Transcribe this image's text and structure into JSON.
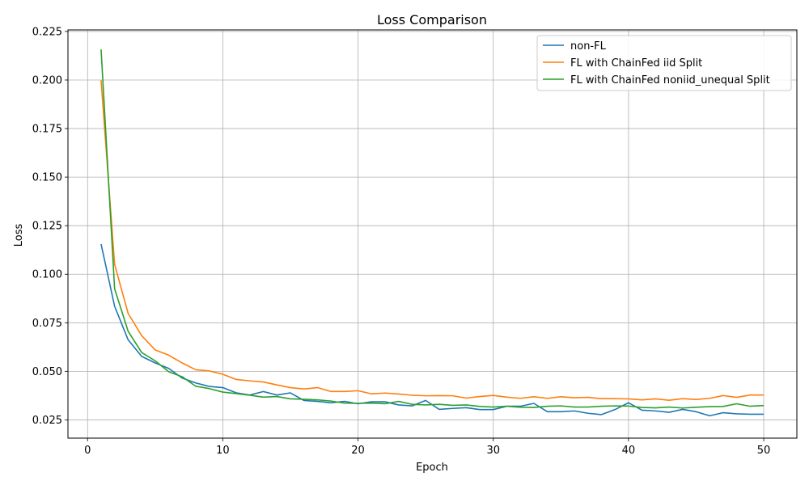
{
  "chart_data": {
    "type": "line",
    "title": "Loss Comparison",
    "xlabel": "Epoch",
    "ylabel": "Loss",
    "xlim": [
      -1.45,
      52.45
    ],
    "ylim": [
      0.0156,
      0.2258
    ],
    "xticks": [
      0,
      10,
      20,
      30,
      40,
      50
    ],
    "yticks": [
      0.025,
      0.05,
      0.075,
      0.1,
      0.125,
      0.15,
      0.175,
      0.2,
      0.225
    ],
    "grid": true,
    "legend_position": "top-right",
    "x": [
      1,
      2,
      3,
      4,
      5,
      6,
      7,
      8,
      9,
      10,
      11,
      12,
      13,
      14,
      15,
      16,
      17,
      18,
      19,
      20,
      21,
      22,
      23,
      24,
      25,
      26,
      27,
      28,
      29,
      30,
      31,
      32,
      33,
      34,
      35,
      36,
      37,
      38,
      39,
      40,
      41,
      42,
      43,
      44,
      45,
      46,
      47,
      48,
      49,
      50
    ],
    "series": [
      {
        "name": "non-FL",
        "color": "#1f77b4",
        "values": [
          0.1155,
          0.0835,
          0.0662,
          0.0577,
          0.0543,
          0.0515,
          0.0465,
          0.044,
          0.0422,
          0.0416,
          0.0389,
          0.0378,
          0.0396,
          0.0378,
          0.0389,
          0.035,
          0.0345,
          0.0338,
          0.0345,
          0.0333,
          0.0343,
          0.0343,
          0.0327,
          0.0322,
          0.035,
          0.0304,
          0.0309,
          0.0313,
          0.0303,
          0.0303,
          0.032,
          0.032,
          0.0335,
          0.0292,
          0.0292,
          0.0296,
          0.0284,
          0.0277,
          0.0303,
          0.0338,
          0.03,
          0.0296,
          0.0289,
          0.0304,
          0.0292,
          0.0271,
          0.0287,
          0.0281,
          0.0279,
          0.0279
        ]
      },
      {
        "name": "FL with ChainFed iid Split",
        "color": "#ff7f0e",
        "values": [
          0.1998,
          0.1051,
          0.0798,
          0.0684,
          0.061,
          0.0583,
          0.0543,
          0.0508,
          0.0502,
          0.0485,
          0.0458,
          0.0451,
          0.0445,
          0.043,
          0.0416,
          0.0409,
          0.0416,
          0.0396,
          0.0396,
          0.04,
          0.0384,
          0.0388,
          0.0383,
          0.0377,
          0.0374,
          0.0375,
          0.0374,
          0.0362,
          0.037,
          0.0376,
          0.0367,
          0.0361,
          0.0369,
          0.0361,
          0.0369,
          0.0364,
          0.0366,
          0.0359,
          0.0359,
          0.0358,
          0.0353,
          0.0358,
          0.0351,
          0.0359,
          0.0355,
          0.0361,
          0.0375,
          0.0366,
          0.0378,
          0.0378
        ]
      },
      {
        "name": "FL with ChainFed noniid_unequal Split",
        "color": "#2ca02c",
        "values": [
          0.2158,
          0.0925,
          0.0706,
          0.0597,
          0.0554,
          0.0498,
          0.0472,
          0.0423,
          0.0411,
          0.0393,
          0.0385,
          0.0377,
          0.0367,
          0.037,
          0.0358,
          0.0356,
          0.0353,
          0.0347,
          0.0336,
          0.0335,
          0.0336,
          0.0333,
          0.0345,
          0.033,
          0.0327,
          0.033,
          0.0325,
          0.0327,
          0.0319,
          0.0316,
          0.032,
          0.0315,
          0.0314,
          0.032,
          0.0322,
          0.0316,
          0.0316,
          0.032,
          0.0322,
          0.0321,
          0.0314,
          0.0312,
          0.0316,
          0.0311,
          0.0315,
          0.0318,
          0.0319,
          0.0333,
          0.032,
          0.0324
        ]
      }
    ]
  }
}
